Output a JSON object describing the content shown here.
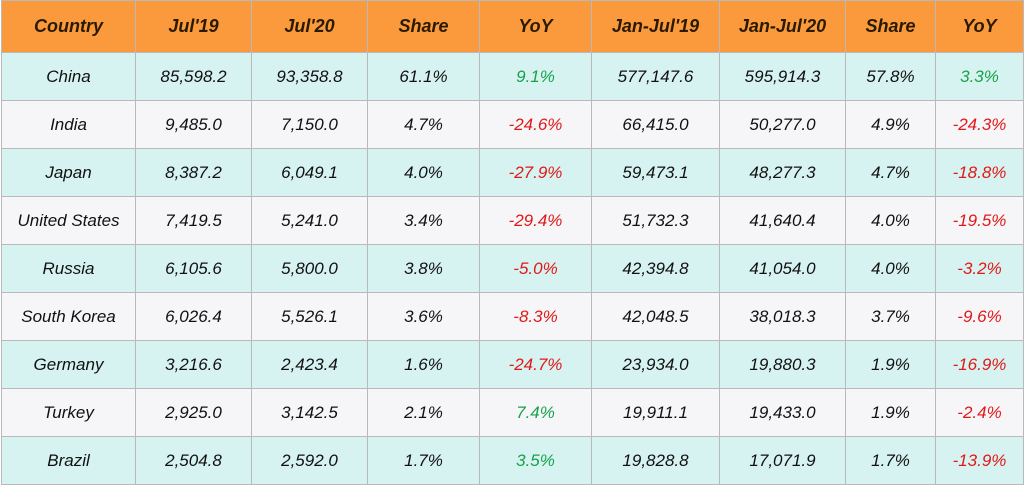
{
  "colors": {
    "header_bg": "#fb9a3d",
    "row_alt_bg": "#d7f3f1",
    "row_bg": "#f6f6f8",
    "positive": "#16a34a",
    "negative": "#e01818",
    "border": "#b9b9b9"
  },
  "chart_data": {
    "type": "table",
    "columns": [
      "Country",
      "Jul'19",
      "Jul'20",
      "Share",
      "YoY",
      "Jan-Jul'19",
      "Jan-Jul'20",
      "Share",
      "YoY"
    ],
    "rows": [
      {
        "country": "China",
        "jul19": "85,598.2",
        "jul20": "93,358.8",
        "share1": "61.1%",
        "yoy1": "9.1%",
        "ytd19": "577,147.6",
        "ytd20": "595,914.3",
        "share2": "57.8%",
        "yoy2": "3.3%"
      },
      {
        "country": "India",
        "jul19": "9,485.0",
        "jul20": "7,150.0",
        "share1": "4.7%",
        "yoy1": "-24.6%",
        "ytd19": "66,415.0",
        "ytd20": "50,277.0",
        "share2": "4.9%",
        "yoy2": "-24.3%"
      },
      {
        "country": "Japan",
        "jul19": "8,387.2",
        "jul20": "6,049.1",
        "share1": "4.0%",
        "yoy1": "-27.9%",
        "ytd19": "59,473.1",
        "ytd20": "48,277.3",
        "share2": "4.7%",
        "yoy2": "-18.8%"
      },
      {
        "country": "United States",
        "jul19": "7,419.5",
        "jul20": "5,241.0",
        "share1": "3.4%",
        "yoy1": "-29.4%",
        "ytd19": "51,732.3",
        "ytd20": "41,640.4",
        "share2": "4.0%",
        "yoy2": "-19.5%"
      },
      {
        "country": "Russia",
        "jul19": "6,105.6",
        "jul20": "5,800.0",
        "share1": "3.8%",
        "yoy1": "-5.0%",
        "ytd19": "42,394.8",
        "ytd20": "41,054.0",
        "share2": "4.0%",
        "yoy2": "-3.2%"
      },
      {
        "country": "South Korea",
        "jul19": "6,026.4",
        "jul20": "5,526.1",
        "share1": "3.6%",
        "yoy1": "-8.3%",
        "ytd19": "42,048.5",
        "ytd20": "38,018.3",
        "share2": "3.7%",
        "yoy2": "-9.6%"
      },
      {
        "country": "Germany",
        "jul19": "3,216.6",
        "jul20": "2,423.4",
        "share1": "1.6%",
        "yoy1": "-24.7%",
        "ytd19": "23,934.0",
        "ytd20": "19,880.3",
        "share2": "1.9%",
        "yoy2": "-16.9%"
      },
      {
        "country": "Turkey",
        "jul19": "2,925.0",
        "jul20": "3,142.5",
        "share1": "2.1%",
        "yoy1": "7.4%",
        "ytd19": "19,911.1",
        "ytd20": "19,433.0",
        "share2": "1.9%",
        "yoy2": "-2.4%"
      },
      {
        "country": "Brazil",
        "jul19": "2,504.8",
        "jul20": "2,592.0",
        "share1": "1.7%",
        "yoy1": "3.5%",
        "ytd19": "19,828.8",
        "ytd20": "17,071.9",
        "share2": "1.7%",
        "yoy2": "-13.9%"
      }
    ]
  }
}
